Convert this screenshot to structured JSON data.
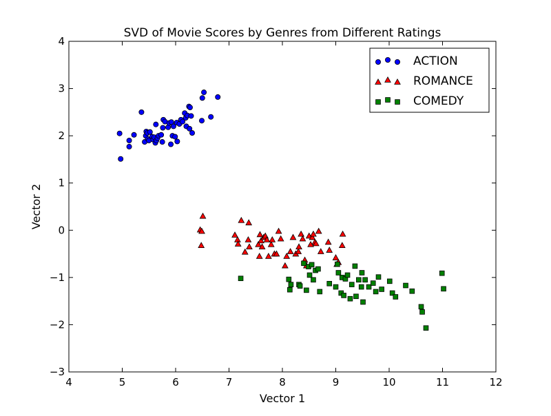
{
  "chart_data": {
    "type": "scatter",
    "title": "SVD of Movie Scores by Genres from Different Ratings",
    "xlabel": "Vector 1",
    "ylabel": "Vector 2",
    "xlim": [
      4,
      12
    ],
    "ylim": [
      -3,
      4
    ],
    "xticks": [
      "4",
      "5",
      "6",
      "7",
      "8",
      "9",
      "10",
      "11",
      "12"
    ],
    "yticks": [
      "−3",
      "−2",
      "−1",
      "0",
      "1",
      "2",
      "3",
      "4"
    ],
    "grid": false,
    "legend_position": "top-right",
    "series": [
      {
        "name": "ACTION",
        "marker": "circle",
        "color": "#0000ff",
        "points": [
          [
            4.95,
            2.05
          ],
          [
            4.97,
            1.51
          ],
          [
            5.13,
            1.77
          ],
          [
            5.13,
            1.9
          ],
          [
            5.22,
            2.02
          ],
          [
            5.36,
            2.5
          ],
          [
            5.42,
            1.87
          ],
          [
            5.44,
            2.0
          ],
          [
            5.45,
            2.09
          ],
          [
            5.47,
            2.06
          ],
          [
            5.48,
            1.93
          ],
          [
            5.5,
            1.9
          ],
          [
            5.52,
            2.08
          ],
          [
            5.56,
            1.98
          ],
          [
            5.58,
            1.92
          ],
          [
            5.6,
            1.97
          ],
          [
            5.62,
            1.85
          ],
          [
            5.64,
            1.9
          ],
          [
            5.66,
            1.95
          ],
          [
            5.68,
            2.0
          ],
          [
            5.63,
            2.24
          ],
          [
            5.73,
            2.02
          ],
          [
            5.75,
            1.87
          ],
          [
            5.76,
            2.17
          ],
          [
            5.77,
            2.34
          ],
          [
            5.8,
            2.3
          ],
          [
            5.86,
            2.18
          ],
          [
            5.88,
            2.27
          ],
          [
            5.91,
            1.82
          ],
          [
            5.92,
            2.29
          ],
          [
            5.94,
            2.0
          ],
          [
            5.96,
            2.2
          ],
          [
            5.99,
            1.98
          ],
          [
            6.02,
            2.28
          ],
          [
            6.03,
            1.88
          ],
          [
            6.07,
            2.25
          ],
          [
            6.1,
            2.34
          ],
          [
            6.13,
            2.3
          ],
          [
            6.17,
            2.48
          ],
          [
            6.19,
            2.38
          ],
          [
            6.2,
            2.2
          ],
          [
            6.22,
            2.43
          ],
          [
            6.25,
            2.62
          ],
          [
            6.26,
            2.15
          ],
          [
            6.27,
            2.6
          ],
          [
            6.29,
            2.42
          ],
          [
            6.31,
            2.06
          ],
          [
            6.49,
            2.32
          ],
          [
            6.5,
            2.8
          ],
          [
            6.53,
            2.92
          ],
          [
            6.66,
            2.4
          ],
          [
            6.79,
            2.82
          ]
        ]
      },
      {
        "name": "ROMANCE",
        "marker": "triangle",
        "color": "#ff0000",
        "points": [
          [
            6.46,
            0.01
          ],
          [
            6.48,
            -0.32
          ],
          [
            6.49,
            -0.02
          ],
          [
            6.51,
            0.3
          ],
          [
            7.11,
            -0.1
          ],
          [
            7.16,
            -0.2
          ],
          [
            7.17,
            -0.29
          ],
          [
            7.23,
            0.21
          ],
          [
            7.3,
            -0.46
          ],
          [
            7.36,
            -0.2
          ],
          [
            7.37,
            0.16
          ],
          [
            7.38,
            -0.35
          ],
          [
            7.55,
            -0.3
          ],
          [
            7.57,
            -0.55
          ],
          [
            7.58,
            -0.09
          ],
          [
            7.6,
            -0.22
          ],
          [
            7.62,
            -0.35
          ],
          [
            7.65,
            -0.15
          ],
          [
            7.68,
            -0.12
          ],
          [
            7.71,
            -0.2
          ],
          [
            7.74,
            -0.55
          ],
          [
            7.79,
            -0.3
          ],
          [
            7.81,
            -0.2
          ],
          [
            7.85,
            -0.5
          ],
          [
            7.89,
            -0.5
          ],
          [
            7.93,
            -0.02
          ],
          [
            7.97,
            -0.18
          ],
          [
            8.05,
            -0.75
          ],
          [
            8.08,
            -0.55
          ],
          [
            8.15,
            -0.45
          ],
          [
            8.2,
            -0.15
          ],
          [
            8.25,
            -0.5
          ],
          [
            8.3,
            -0.45
          ],
          [
            8.31,
            -0.35
          ],
          [
            8.35,
            -0.08
          ],
          [
            8.38,
            -0.18
          ],
          [
            8.42,
            -0.63
          ],
          [
            8.45,
            -0.75
          ],
          [
            8.5,
            -0.12
          ],
          [
            8.53,
            -0.3
          ],
          [
            8.56,
            -0.15
          ],
          [
            8.58,
            -0.08
          ],
          [
            8.61,
            -0.25
          ],
          [
            8.63,
            -0.28
          ],
          [
            8.68,
            -0.02
          ],
          [
            8.72,
            -0.45
          ],
          [
            8.86,
            -0.25
          ],
          [
            8.88,
            -0.42
          ],
          [
            9.0,
            -0.58
          ],
          [
            9.02,
            -0.72
          ],
          [
            9.05,
            -0.68
          ],
          [
            9.12,
            -0.32
          ],
          [
            9.13,
            -0.08
          ]
        ]
      },
      {
        "name": "COMEDY",
        "marker": "square",
        "color": "#008000",
        "points": [
          [
            7.22,
            -1.02
          ],
          [
            8.12,
            -1.04
          ],
          [
            8.14,
            -1.26
          ],
          [
            8.16,
            -1.15
          ],
          [
            8.31,
            -1.15
          ],
          [
            8.33,
            -1.18
          ],
          [
            8.4,
            -0.7
          ],
          [
            8.45,
            -1.27
          ],
          [
            8.49,
            -0.77
          ],
          [
            8.51,
            -0.95
          ],
          [
            8.55,
            -0.73
          ],
          [
            8.58,
            -1.05
          ],
          [
            8.62,
            -0.85
          ],
          [
            8.67,
            -0.82
          ],
          [
            8.7,
            -1.3
          ],
          [
            8.88,
            -1.13
          ],
          [
            9.0,
            -1.2
          ],
          [
            9.03,
            -0.72
          ],
          [
            9.05,
            -0.9
          ],
          [
            9.1,
            -1.33
          ],
          [
            9.12,
            -1.0
          ],
          [
            9.15,
            -1.38
          ],
          [
            9.18,
            -1.03
          ],
          [
            9.22,
            -0.95
          ],
          [
            9.27,
            -1.45
          ],
          [
            9.3,
            -1.15
          ],
          [
            9.36,
            -0.76
          ],
          [
            9.38,
            -1.4
          ],
          [
            9.43,
            -1.05
          ],
          [
            9.48,
            -1.2
          ],
          [
            9.49,
            -0.9
          ],
          [
            9.51,
            -1.52
          ],
          [
            9.55,
            -1.05
          ],
          [
            9.62,
            -1.2
          ],
          [
            9.7,
            -1.12
          ],
          [
            9.75,
            -1.3
          ],
          [
            9.8,
            -0.99
          ],
          [
            9.86,
            -1.25
          ],
          [
            10.01,
            -1.08
          ],
          [
            10.06,
            -1.33
          ],
          [
            10.12,
            -1.41
          ],
          [
            10.31,
            -1.17
          ],
          [
            10.43,
            -1.29
          ],
          [
            10.6,
            -1.62
          ],
          [
            10.62,
            -1.73
          ],
          [
            10.69,
            -2.07
          ],
          [
            10.99,
            -0.91
          ],
          [
            11.02,
            -1.24
          ]
        ]
      }
    ]
  }
}
